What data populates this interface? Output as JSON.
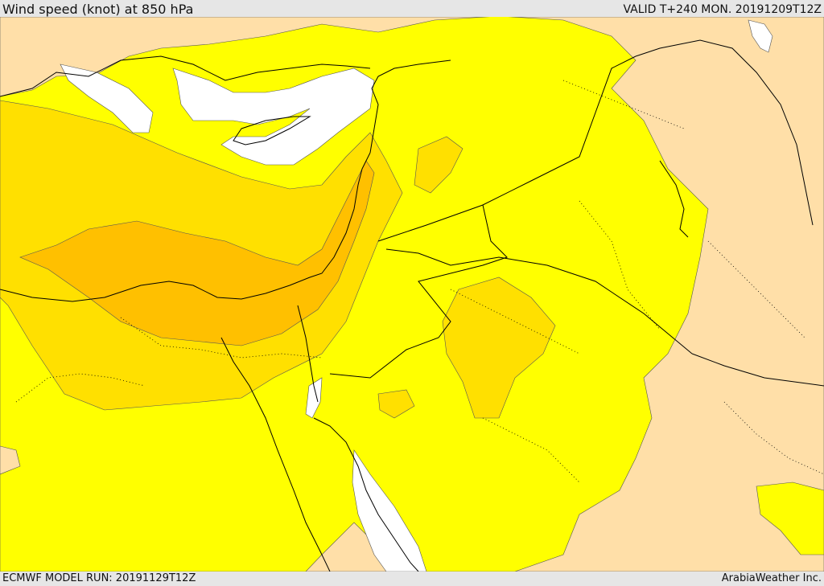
{
  "header": {
    "title": "Wind speed (knot) at 850 hPa",
    "valid_time": "VALID T+240 MON. 20191209T12Z"
  },
  "footer": {
    "model_run": "ECMWF MODEL RUN: 20191129T12Z",
    "credit": "ArabiaWeather Inc."
  },
  "colors": {
    "speed_band_1": "#ffdfa8",
    "speed_band_2": "#ffff00",
    "speed_band_3": "#ffe000",
    "speed_band_4": "#ffc000",
    "speed_band_5": "#ffb300",
    "calm": "#ffffff",
    "border": "#000000"
  }
}
